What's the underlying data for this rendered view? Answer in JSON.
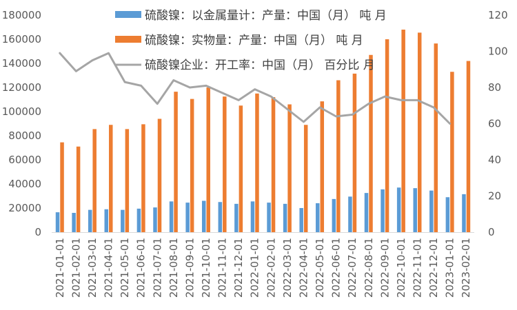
{
  "chart_data": {
    "type": "bar",
    "title": "",
    "xlabel": "",
    "ylabel_left": "",
    "ylabel_right": "",
    "categories": [
      "2021-01-01",
      "2021-02-01",
      "2021-03-01",
      "2021-04-01",
      "2021-05-01",
      "2021-06-01",
      "2021-07-01",
      "2021-08-01",
      "2021-09-01",
      "2021-10-01",
      "2021-11-01",
      "2021-12-01",
      "2022-01-01",
      "2022-02-01",
      "2022-03-01",
      "2022-04-01",
      "2022-05-01",
      "2022-06-01",
      "2022-07-01",
      "2022-08-01",
      "2022-09-01",
      "2022-10-01",
      "2022-11-01",
      "2022-12-01",
      "2023-01-01",
      "2023-02-01"
    ],
    "ylim_left": [
      0,
      180000
    ],
    "yticks_left": [
      0,
      20000,
      40000,
      60000,
      80000,
      100000,
      120000,
      140000,
      160000,
      180000
    ],
    "ylim_right": [
      0,
      120
    ],
    "yticks_right": [
      0,
      20,
      40,
      60,
      80,
      100,
      120
    ],
    "series": [
      {
        "name": "硫酸镍：以金属量计：产量：中国（月） 吨 月",
        "type": "bar",
        "axis": "left",
        "color": "#5B9BD5",
        "values": [
          16500,
          16000,
          18500,
          19000,
          18500,
          19500,
          20500,
          25500,
          24500,
          26000,
          25000,
          23500,
          25500,
          24500,
          23500,
          20000,
          24000,
          27500,
          29500,
          32500,
          35500,
          37000,
          36500,
          34500,
          29000,
          31500
        ]
      },
      {
        "name": "硫酸镍：实物量：产量：中国（月） 吨 月",
        "type": "bar",
        "axis": "left",
        "color": "#ED7D31",
        "values": [
          74500,
          71000,
          85500,
          89000,
          85500,
          89500,
          94000,
          116500,
          110500,
          120000,
          112500,
          105000,
          115000,
          112000,
          106000,
          89000,
          108500,
          126000,
          131500,
          147000,
          160000,
          168000,
          165500,
          156500,
          133000,
          142000
        ]
      },
      {
        "name": "硫酸镍企业：开工率：中国（月） 百分比 月",
        "type": "line",
        "axis": "right",
        "color": "#A5A5A5",
        "values": [
          99,
          89,
          95,
          99,
          83,
          81,
          71,
          84,
          80,
          81,
          77,
          73,
          79,
          75,
          68,
          61,
          69,
          64,
          65,
          71,
          75,
          73,
          73,
          69,
          60,
          null
        ]
      }
    ]
  }
}
